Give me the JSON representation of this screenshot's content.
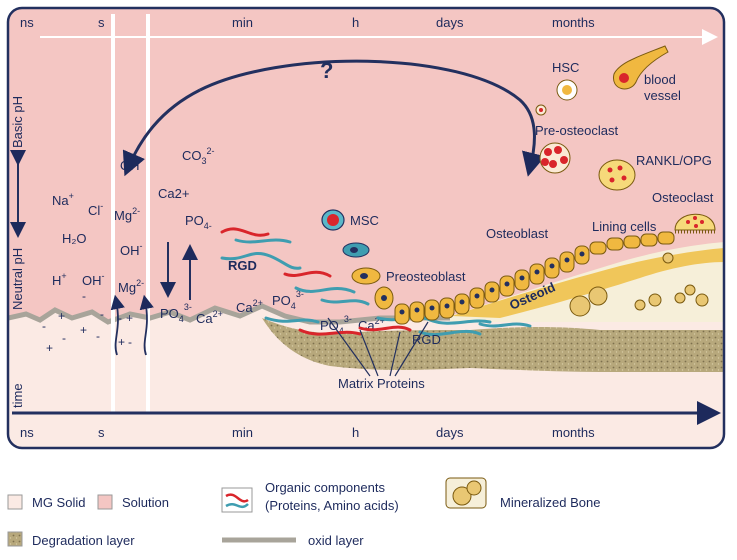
{
  "time_axis_top": [
    "ns",
    "s",
    "min",
    "h",
    "days",
    "months"
  ],
  "time_axis_bottom": [
    "ns",
    "s",
    "min",
    "h",
    "days",
    "months"
  ],
  "y_labels": {
    "basic": "Basic pH",
    "neutral": "Neutral pH",
    "time": "time"
  },
  "question": "?",
  "ions": {
    "na": "Na",
    "na_sup": "+",
    "cl": "Cl",
    "cl_sup": "-",
    "h2o": "H₂O",
    "h": "H",
    "h_sup": "+",
    "oh": "OH",
    "oh_sup": "-",
    "oh2": "OH",
    "oh2_sup": "-",
    "mg1": "Mg",
    "mg1_sup": "2-",
    "oh3": "OH",
    "oh3_sup": "-",
    "mg2": "Mg",
    "mg2_sup": "2-",
    "co3": "CO",
    "co3_sub": "3",
    "co3_sup": "2-",
    "ca": "Ca2+",
    "po4a": "PO",
    "po4a_sub": "4-",
    "po4b": "PO",
    "po4b_sub": "4",
    "po4b_sup": "3-",
    "ca2": "Ca",
    "ca2_sup": "2+",
    "ca3": "Ca",
    "ca3_sup": "2+",
    "po4c": "PO",
    "po4c_sub": "4",
    "po4c_sup": "3-",
    "po4d": "PO",
    "po4d_sub": "4",
    "po4d_sup": "3-",
    "ca4": "Ca",
    "ca4_sup": "2+"
  },
  "cells": {
    "hsc": "HSC",
    "blood_vessel_1": "blood",
    "blood_vessel_2": "vessel",
    "pre_osteoclast": "Pre-osteoclast",
    "rankl": "RANKL/OPG",
    "osteoclast": "Osteoclast",
    "lining": "Lining cells",
    "osteoblast": "Osteoblast",
    "msc": "MSC",
    "preosteoblast": "Preosteoblast",
    "osteoid": "Osteoid",
    "rgd1": "RGD",
    "rgd2": "RGD",
    "matrix": "Matrix Proteins"
  },
  "legend": {
    "mg_solid": "MG Solid",
    "solution": "Solution",
    "organic_1": "Organic components",
    "organic_2": "(Proteins, Amino acids)",
    "mineralized": "Mineralized Bone",
    "degradation": "Degradation layer",
    "oxid": "oxid layer"
  },
  "colors": {
    "solution": "#f4c6c3",
    "solid": "#fbeae4",
    "frame": "#23305f",
    "degradation": "#b5a77d",
    "oxid": "#a8a49a",
    "cell": "#f0b840",
    "bone": "#f6efd9",
    "protein_red": "#d9252b",
    "protein_teal": "#3f9db0"
  }
}
